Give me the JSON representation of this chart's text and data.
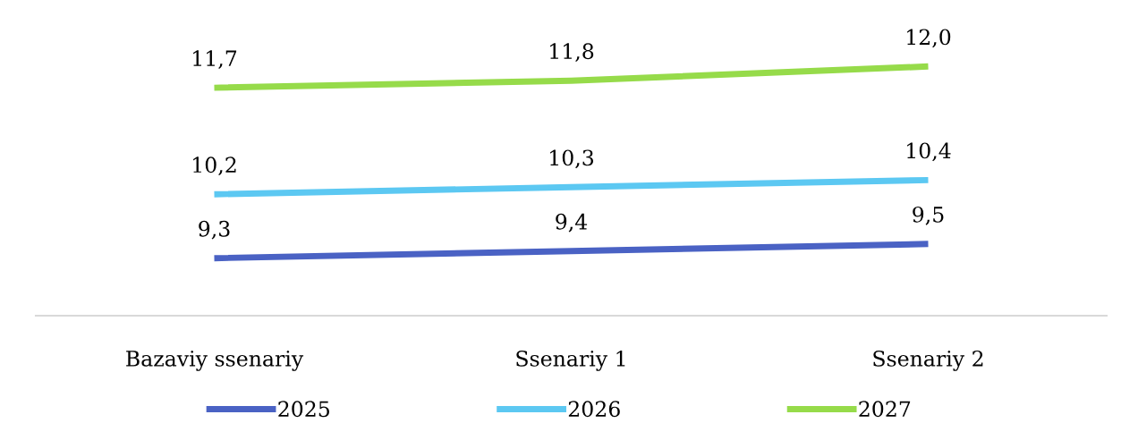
{
  "chart_data": {
    "type": "line",
    "categories": [
      "Bazaviy ssenariy",
      "Ssenariy 1",
      "Ssenariy 2"
    ],
    "tick_labels": "x",
    "grid": false,
    "legend": "bottom",
    "marker": "none",
    "line_style": "solid",
    "series": [
      {
        "name": "2025",
        "color": "#4a62c4",
        "values": [
          9.3,
          9.4,
          9.5
        ],
        "value_labels": [
          "9,3",
          "9,4",
          "9,5"
        ]
      },
      {
        "name": "2026",
        "color": "#5cc8f2",
        "values": [
          10.2,
          10.3,
          10.4
        ],
        "value_labels": [
          "10,2",
          "10,3",
          "10,4"
        ]
      },
      {
        "name": "2027",
        "color": "#96db4a",
        "values": [
          11.7,
          11.8,
          12.0
        ],
        "value_labels": [
          "11,7",
          "11,8",
          "12,0"
        ]
      }
    ]
  }
}
